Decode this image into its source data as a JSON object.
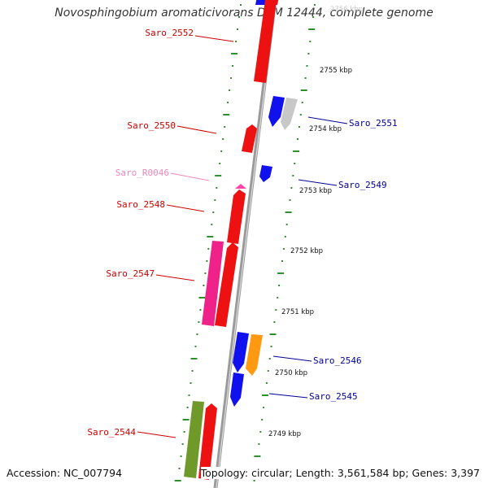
{
  "title": "Novosphingobium aromaticivorans DSM 12444, complete genome",
  "footer": {
    "accession": "Accession: NC_007794",
    "topology": "Topology: circular; Length: 3,561,584 bp; Genes: 3,397"
  },
  "colors": {
    "backbone": "#9a9a9a",
    "tick": "#2f8f2f",
    "forward_gene": "#ee1111",
    "reverse_gene": "#1111ee",
    "rna_gene": "#ff44aa",
    "gray_gene": "#c8c8c8",
    "orange_gene": "#ff9911",
    "olive_gene": "#6f9a2a",
    "magenta_gene": "#ee2288",
    "forward_label": "#cc0000",
    "reverse_label": "#000099",
    "rna_label": "#ee88bb"
  },
  "kbp_markers": [
    "2756 kbp",
    "2755 kbp",
    "2754 kbp",
    "2753 kbp",
    "2752 kbp",
    "2751 kbp",
    "2750 kbp",
    "2749 kbp"
  ],
  "gene_labels": [
    "Saro_2552",
    "Saro_2551",
    "Saro_2550",
    "Saro_R0046",
    "Saro_2549",
    "Saro_2548",
    "Saro_2547",
    "Saro_2546",
    "Saro_2545",
    "Saro_2544"
  ]
}
